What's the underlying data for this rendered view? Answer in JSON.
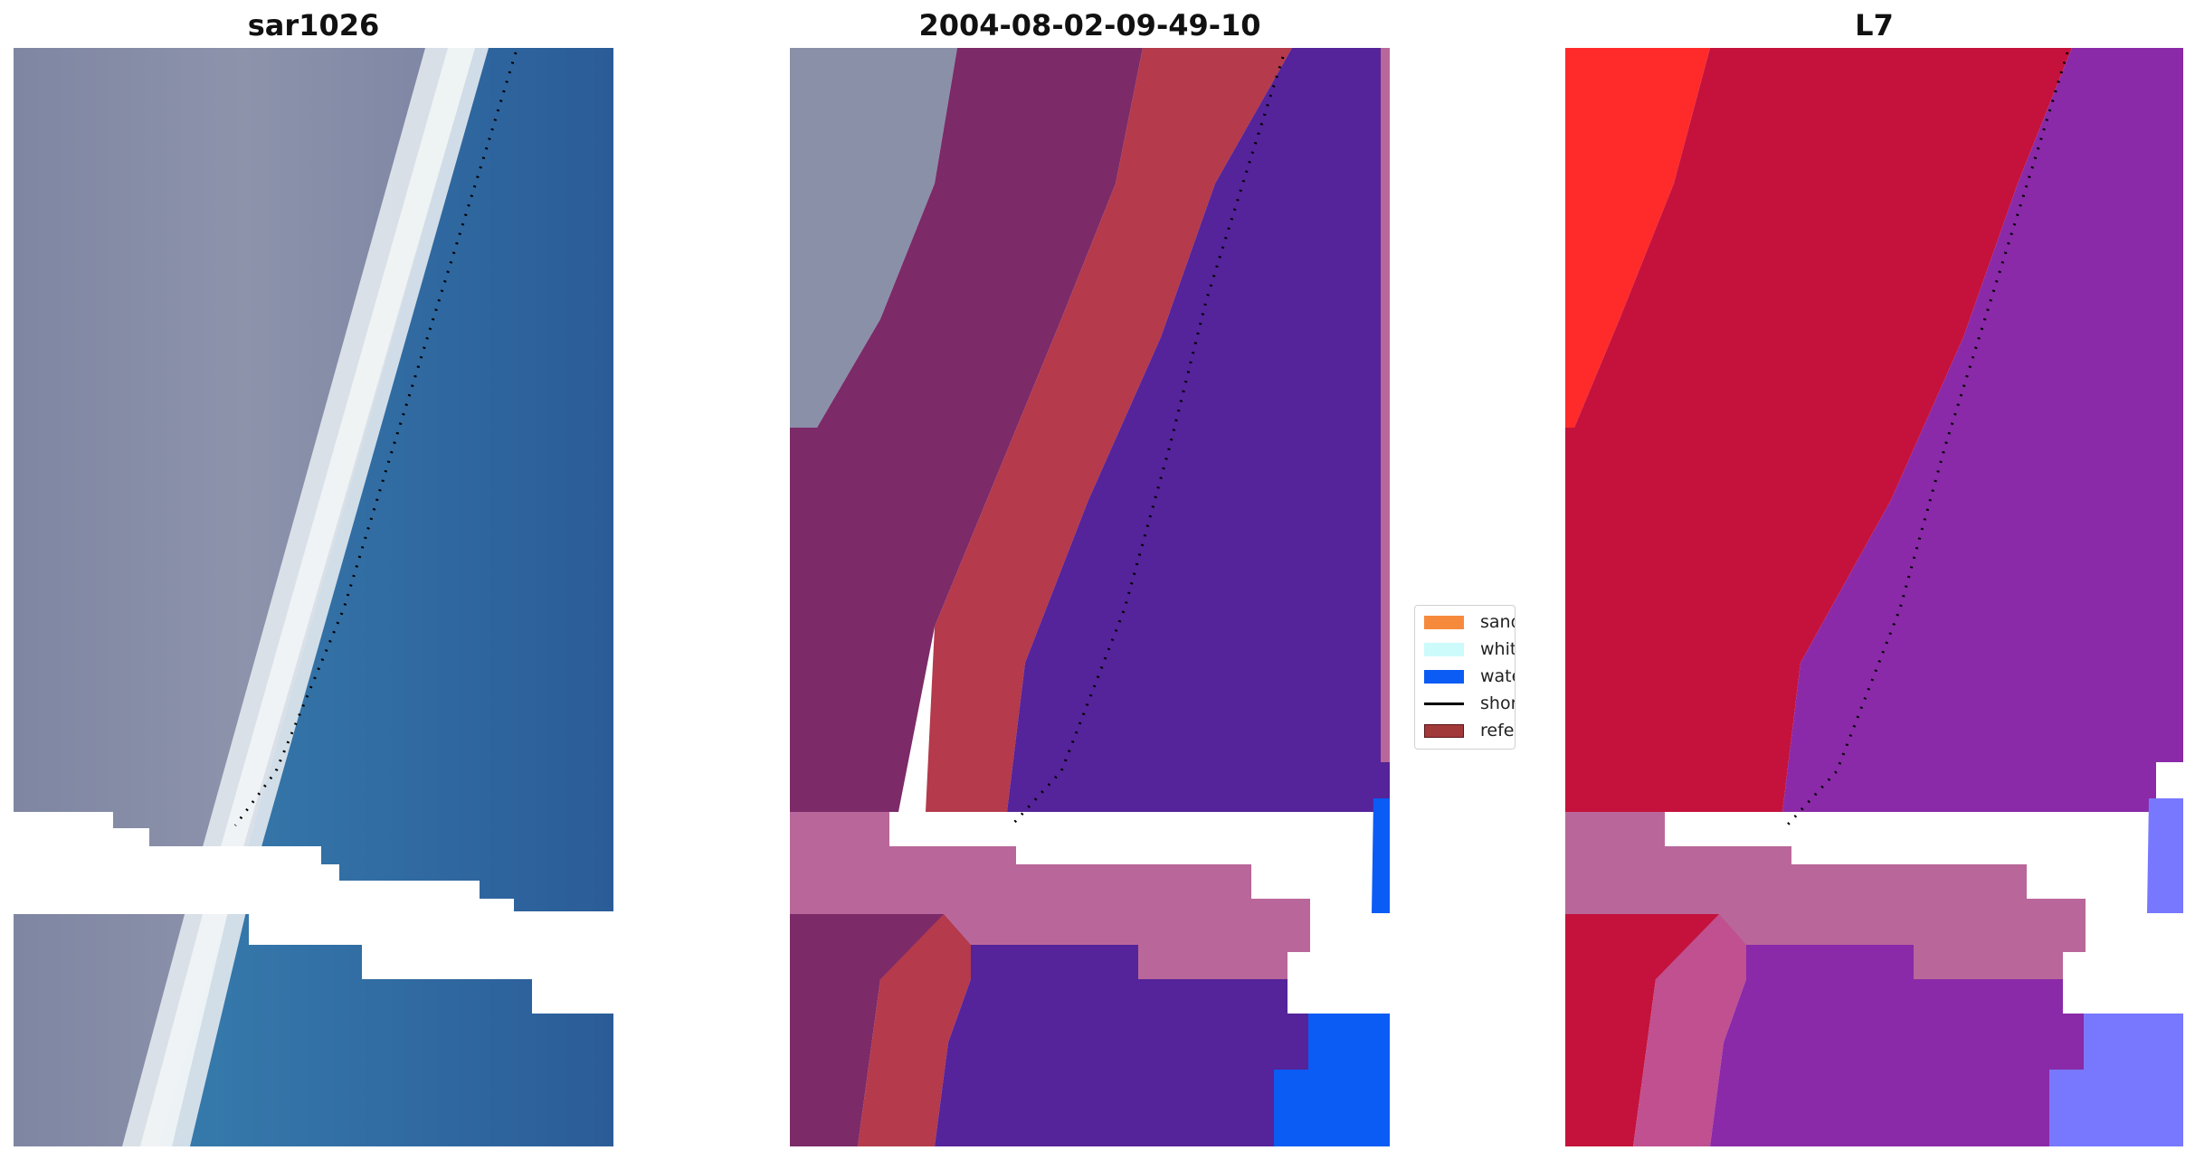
{
  "panels": [
    {
      "title": "sar1026"
    },
    {
      "title": "2004-08-02-09-49-10"
    },
    {
      "title": "L7"
    }
  ],
  "legend": {
    "items": [
      {
        "label": "sand",
        "color": "#f68a3c",
        "kind": "patch"
      },
      {
        "label": "whitewater",
        "color": "#cdfafa",
        "kind": "patch"
      },
      {
        "label": "water",
        "color": "#0a5cf5",
        "kind": "patch"
      },
      {
        "label": "shoreline",
        "color": "#000000",
        "kind": "line"
      },
      {
        "label": "reference",
        "color": "#a1393b",
        "kind": "patch-outline"
      }
    ]
  },
  "colors": {
    "land_grey": "#8a90a8",
    "sea_blue": "#2f72a8",
    "beach_white": "#e8eef2",
    "cloud_mask": "#b9679a",
    "sand_overlay": "#b43a4c",
    "water_overlay": "#55239a",
    "land_overlay": "#7c2a68",
    "pure_water": "#0a5cf5",
    "red_land": "#c4123c",
    "purple_water": "#8a2aa8",
    "light_blue": "#7878ff",
    "bright_red": "#ff2a2a"
  }
}
